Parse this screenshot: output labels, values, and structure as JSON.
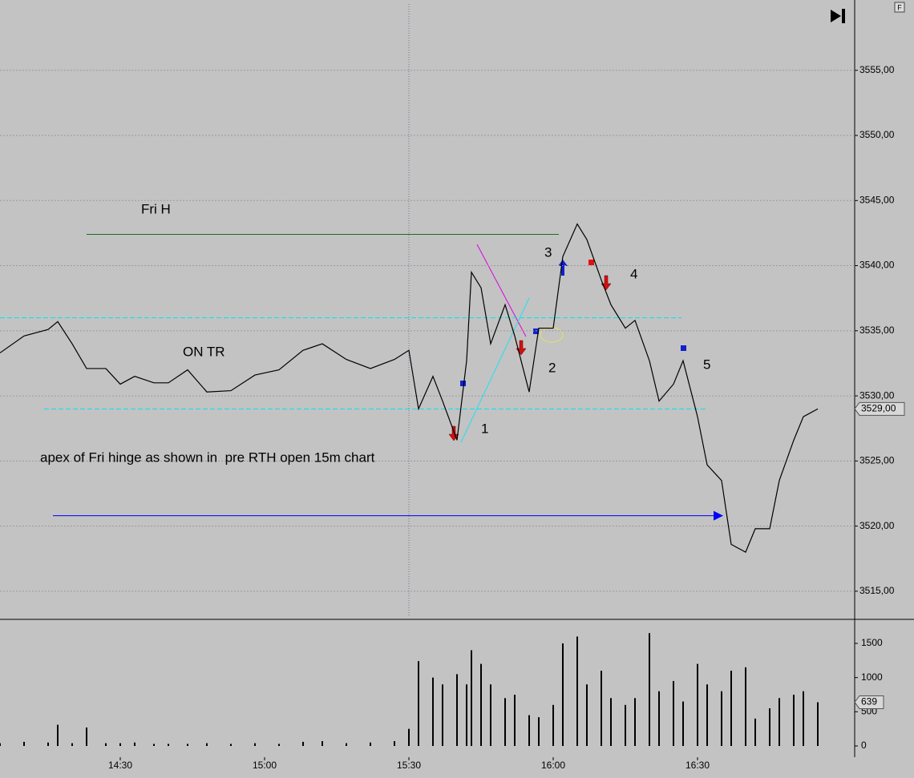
{
  "corner_label": "F",
  "chart_data": [
    {
      "type": "line",
      "x": [
        "14:05",
        "14:10",
        "14:15",
        "14:17",
        "14:20",
        "14:23",
        "14:27",
        "14:30",
        "14:33",
        "14:37",
        "14:40",
        "14:44",
        "14:48",
        "14:53",
        "14:58",
        "15:03",
        "15:08",
        "15:12",
        "15:17",
        "15:22",
        "15:27",
        "15:30",
        "15:32",
        "15:35",
        "15:37",
        "15:40",
        "15:42",
        "15:43",
        "15:45",
        "15:47",
        "15:50",
        "15:52",
        "15:55",
        "15:57",
        "16:00",
        "16:02",
        "16:05",
        "16:07",
        "16:10",
        "16:12",
        "16:15",
        "16:17",
        "16:20",
        "16:22",
        "16:25",
        "16:27",
        "16:30",
        "16:32",
        "16:35",
        "16:37",
        "16:40",
        "16:42",
        "16:45",
        "16:47",
        "16:50",
        "16:52",
        "16:55"
      ],
      "series": [
        {
          "color": "#000000",
          "values": [
            3533.3,
            3534.6,
            3535.1,
            3535.7,
            3534.0,
            3532.1,
            3532.1,
            3530.9,
            3531.5,
            3531.0,
            3531.0,
            3532.0,
            3530.3,
            3530.4,
            3531.6,
            3532.0,
            3533.5,
            3534.0,
            3532.8,
            3532.1,
            3532.8,
            3533.5,
            3529.0,
            3531.5,
            3529.6,
            3526.6,
            3532.7,
            3539.5,
            3538.3,
            3534.0,
            3537.0,
            3534.6,
            3530.3,
            3535.2,
            3535.2,
            3540.7,
            3543.2,
            3542.0,
            3538.9,
            3537.0,
            3535.2,
            3535.8,
            3532.7,
            3529.6,
            3530.9,
            3532.7,
            3528.4,
            3524.7,
            3523.5,
            3518.6,
            3518.0,
            3519.8,
            3519.8,
            3523.5,
            3526.6,
            3528.4,
            3529.0
          ]
        }
      ],
      "ylim": [
        3512.9,
        3560.4
      ],
      "yticks": [
        {
          "value": 3515,
          "label": "3515,00"
        },
        {
          "value": 3520,
          "label": "3520,00"
        },
        {
          "value": 3525,
          "label": "3525,00"
        },
        {
          "value": 3530,
          "label": "3530,00"
        },
        {
          "value": 3535,
          "label": "3535,00"
        },
        {
          "value": 3540,
          "label": "3540,00"
        },
        {
          "value": 3545,
          "label": "3545,00"
        },
        {
          "value": 3550,
          "label": "3550,00"
        },
        {
          "value": 3555,
          "label": "3555,00"
        }
      ],
      "grid": true,
      "last_value": 3529,
      "last_label": "3529,00",
      "levels": [
        {
          "value": 3542.4,
          "color": "#1e6b1e"
        },
        {
          "value": 3536,
          "color": "#00e5ee"
        },
        {
          "value": 3529,
          "color": "#00e5ee"
        },
        {
          "value": 3520.8,
          "color": "#0000ff"
        }
      ],
      "vline": "15:30",
      "annotations": [
        "Fri H",
        "ON TR",
        "apex of Fri hinge as shown in  pre RTH open 15m chart",
        "1",
        "2",
        "3",
        "4",
        "5"
      ]
    },
    {
      "type": "bar",
      "x": [
        "14:05",
        "14:10",
        "14:15",
        "14:17",
        "14:20",
        "14:23",
        "14:27",
        "14:30",
        "14:33",
        "14:37",
        "14:40",
        "14:44",
        "14:48",
        "14:53",
        "14:58",
        "15:03",
        "15:08",
        "15:12",
        "15:17",
        "15:22",
        "15:27",
        "15:30",
        "15:32",
        "15:35",
        "15:37",
        "15:40",
        "15:42",
        "15:43",
        "15:45",
        "15:47",
        "15:50",
        "15:52",
        "15:55",
        "15:57",
        "16:00",
        "16:02",
        "16:05",
        "16:07",
        "16:10",
        "16:12",
        "16:15",
        "16:17",
        "16:20",
        "16:22",
        "16:25",
        "16:27",
        "16:30",
        "16:32",
        "16:35",
        "16:37",
        "16:40",
        "16:42",
        "16:45",
        "16:47",
        "16:50",
        "16:52",
        "16:55"
      ],
      "values": [
        40,
        60,
        50,
        310,
        40,
        270,
        40,
        40,
        50,
        30,
        30,
        30,
        40,
        30,
        40,
        30,
        60,
        70,
        40,
        50,
        70,
        250,
        1240,
        1000,
        900,
        1050,
        900,
        1400,
        1200,
        900,
        700,
        750,
        450,
        420,
        600,
        1500,
        1600,
        900,
        1100,
        700,
        600,
        700,
        1650,
        800,
        950,
        650,
        1200,
        900,
        800,
        1100,
        1150,
        400,
        550,
        700,
        750,
        800,
        639
      ],
      "color": "#000000",
      "ylim": [
        -164,
        1828
      ],
      "yticks": [
        0,
        500,
        1000,
        1500
      ],
      "xticks": [
        "14:30",
        "15:00",
        "15:30",
        "16:00",
        "16:30"
      ],
      "last_value": 639
    }
  ]
}
